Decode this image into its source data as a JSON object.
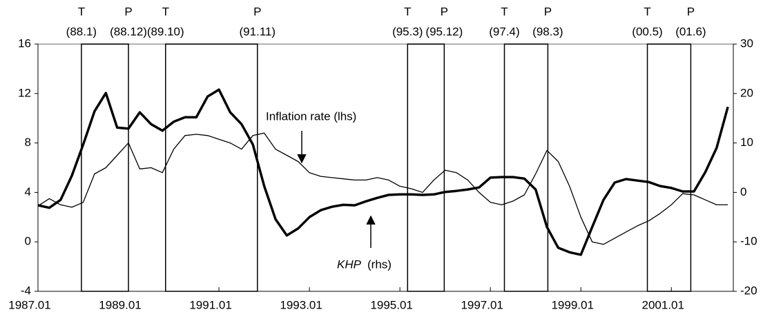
{
  "chart_data": {
    "type": "line",
    "x": [
      1987.0,
      1987.25,
      1987.5,
      1987.75,
      1988.0,
      1988.25,
      1988.5,
      1988.75,
      1989.0,
      1989.25,
      1989.5,
      1989.75,
      1990.0,
      1990.25,
      1990.5,
      1990.75,
      1991.0,
      1991.25,
      1991.5,
      1991.75,
      1992.0,
      1992.25,
      1992.5,
      1992.75,
      1993.0,
      1993.25,
      1993.5,
      1993.75,
      1994.0,
      1994.25,
      1994.5,
      1994.75,
      1995.0,
      1995.25,
      1995.5,
      1995.75,
      1996.0,
      1996.25,
      1996.5,
      1996.75,
      1997.0,
      1997.25,
      1997.5,
      1997.75,
      1998.0,
      1998.25,
      1998.5,
      1998.75,
      1999.0,
      1999.25,
      1999.5,
      1999.75,
      2000.0,
      2000.25,
      2000.5,
      2000.75,
      2001.0,
      2001.25,
      2001.5,
      2001.75,
      2002.0,
      2002.25
    ],
    "series": [
      {
        "color": "#000000",
        "width": 1.3,
        "values": [
          2.9,
          3.5,
          3.0,
          2.8,
          3.2,
          5.5,
          6.0,
          7.0,
          8.0,
          5.9,
          6.0,
          5.6,
          7.5,
          8.6,
          8.7,
          8.6,
          8.3,
          8.0,
          7.5,
          8.6,
          8.8,
          7.5,
          7.0,
          6.5,
          5.6,
          5.3,
          5.2,
          5.1,
          5.0,
          5.0,
          5.2,
          5.0,
          4.5,
          4.3,
          4.0,
          5.0,
          5.8,
          5.6,
          5.0,
          4.0,
          3.2,
          3.0,
          3.3,
          3.8,
          5.5,
          7.4,
          6.5,
          4.5,
          2.0,
          0.0,
          -0.2,
          0.3,
          0.8,
          1.3,
          1.7,
          2.3,
          3.0,
          3.9,
          3.8,
          3.4,
          3.0,
          3.0
        ]
      },
      {
        "color": "#000000",
        "width": 3.5,
        "axis": "y2",
        "values": [
          -2.6,
          -3.1,
          -1.5,
          3.4,
          9.7,
          16.4,
          20.1,
          13.1,
          12.9,
          16.2,
          13.8,
          12.5,
          14.3,
          15.2,
          15.2,
          19.4,
          20.8,
          16.2,
          13.8,
          9.7,
          1.3,
          -5.4,
          -8.7,
          -7.3,
          -5.0,
          -3.6,
          -2.9,
          -2.5,
          -2.6,
          -1.8,
          -1.1,
          -0.5,
          -0.4,
          -0.4,
          -0.5,
          -0.4,
          0.1,
          0.3,
          0.6,
          1.0,
          3.0,
          3.1,
          3.1,
          2.8,
          0.6,
          -7.0,
          -11.2,
          -12.1,
          -12.6,
          -7.0,
          -1.5,
          2.0,
          2.7,
          2.4,
          2.1,
          1.3,
          0.9,
          0.2,
          0.2,
          4.1,
          9.0,
          17.3
        ]
      }
    ],
    "xlim": [
      1987.0,
      2002.37
    ],
    "xticks": [
      {
        "value": 1987.0,
        "label": "1987.01"
      },
      {
        "value": 1989.0,
        "label": "1989.01"
      },
      {
        "value": 1991.0,
        "label": "1991.01"
      },
      {
        "value": 1993.0,
        "label": "1993.01"
      },
      {
        "value": 1995.0,
        "label": "1995.01"
      },
      {
        "value": 1997.0,
        "label": "1997.01"
      },
      {
        "value": 1999.0,
        "label": "1999.01"
      },
      {
        "value": 2001.0,
        "label": "2001.01"
      }
    ],
    "ylim": [
      -4,
      16
    ],
    "yticks": [
      -4,
      0,
      4,
      8,
      12,
      16
    ],
    "y2lim": [
      -20,
      30
    ],
    "y2ticks": [
      -20,
      -10,
      0,
      10,
      20,
      30
    ],
    "periods": [
      {
        "start": {
          "label": "T",
          "date": "(88.1)",
          "x": 1987.96
        },
        "end": {
          "label": "P",
          "date": "(88.12)",
          "x": 1989.0
        }
      },
      {
        "start": {
          "label": "T",
          "date": "(89.10)",
          "x": 1989.82
        },
        "end": {
          "label": "P",
          "date": "(91.11)",
          "x": 1991.85
        }
      },
      {
        "start": {
          "label": "T",
          "date": "(95.3)",
          "x": 1995.17
        },
        "end": {
          "label": "P",
          "date": "(95.12)",
          "x": 1995.98
        }
      },
      {
        "start": {
          "label": "T",
          "date": "(97.4)",
          "x": 1997.31
        },
        "end": {
          "label": "P",
          "date": "(98.3)",
          "x": 1998.27
        }
      },
      {
        "start": {
          "label": "T",
          "date": "(00.5)",
          "x": 2000.47
        },
        "end": {
          "label": "P",
          "date": "(01.6)",
          "x": 2001.43
        }
      }
    ],
    "annotations": {
      "inflation": "Inflation rate (lhs)",
      "khp": "KHP",
      "khp_axis": "(rhs)"
    }
  }
}
